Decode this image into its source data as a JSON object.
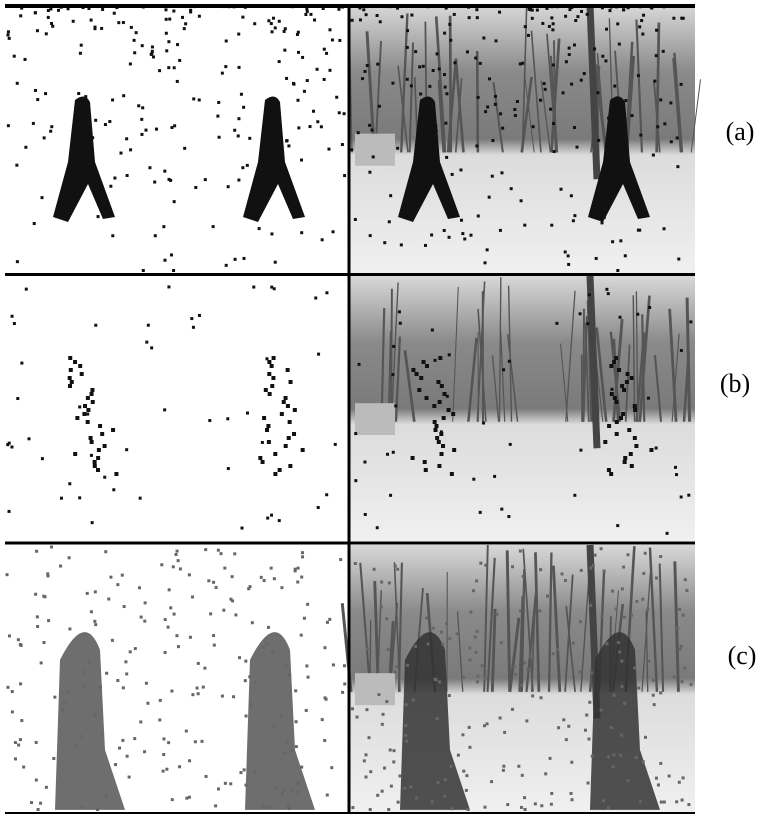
{
  "figure": {
    "rows": [
      {
        "label": "(a)"
      },
      {
        "label": "(b)"
      },
      {
        "label": "(c)"
      }
    ]
  }
}
